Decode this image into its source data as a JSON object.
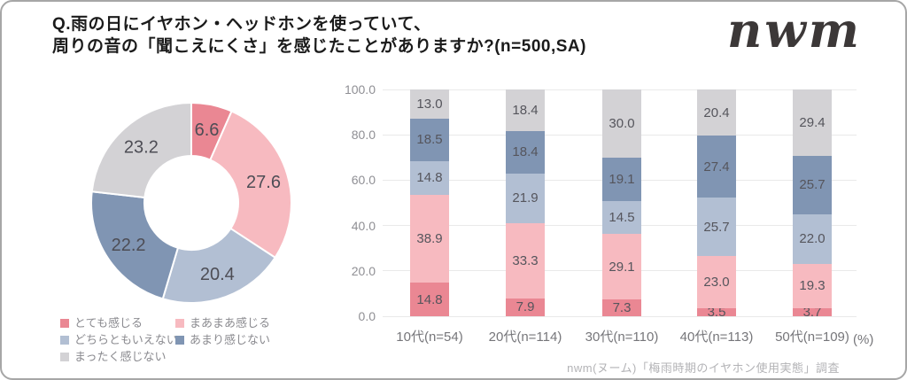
{
  "header": {
    "title_line1": "Q.雨の日にイヤホン・ヘッドホンを使っていて、",
    "title_line2": "周りの音の「聞こえにくさ」を感じたことがありますか?(n=500,SA)",
    "logo": "nwm"
  },
  "colors": {
    "palette": [
      "#EA8793",
      "#F7BAC0",
      "#B2BFD3",
      "#8095B3",
      "#D3D2D5"
    ],
    "gridline": "#e9e9e9",
    "value_label": "#55555c",
    "axis_label": "#8f8f94"
  },
  "legend": {
    "items": [
      {
        "label": "とても感じる",
        "color": "#EA8793"
      },
      {
        "label": "まあまあ感じる",
        "color": "#F7BAC0"
      },
      {
        "label": "どちらともいえない",
        "color": "#B2BFD3"
      },
      {
        "label": "あまり感じない",
        "color": "#8095B3"
      },
      {
        "label": "まったく感じない",
        "color": "#D3D2D5"
      }
    ]
  },
  "chart_data": [
    {
      "type": "pie",
      "donut": true,
      "start_angle": "top",
      "direction": "clockwise",
      "labels": [
        "とても感じる",
        "まあまあ感じる",
        "どちらともいえない",
        "あまり感じない",
        "まったく感じない"
      ],
      "values": [
        6.6,
        27.6,
        20.4,
        22.2,
        23.2
      ],
      "colors": [
        "#EA8793",
        "#F7BAC0",
        "#B2BFD3",
        "#8095B3",
        "#D3D2D5"
      ]
    },
    {
      "type": "bar",
      "stacked": true,
      "categories": [
        "10代(n=54)",
        "20代(n=114)",
        "30代(n=110)",
        "40代(n=113)",
        "50代(n=109)"
      ],
      "series": [
        {
          "name": "とても感じる",
          "values": [
            14.8,
            7.9,
            7.3,
            3.5,
            3.7
          ]
        },
        {
          "name": "まあまあ感じる",
          "values": [
            38.9,
            33.3,
            29.1,
            23.0,
            19.3
          ]
        },
        {
          "name": "どちらともいえない",
          "values": [
            14.8,
            21.9,
            14.5,
            25.7,
            22.0
          ]
        },
        {
          "name": "あまり感じない",
          "values": [
            18.5,
            18.4,
            19.1,
            27.4,
            25.7
          ]
        },
        {
          "name": "まったく感じない",
          "values": [
            13.0,
            18.4,
            30.0,
            20.4,
            29.4
          ]
        }
      ],
      "ylim": [
        0,
        100
      ],
      "ytick_values": [
        0,
        20,
        40,
        60,
        80,
        100
      ],
      "ytick_labels": [
        "0.0",
        "20.0",
        "40.0",
        "60.0",
        "80.0",
        "100.0"
      ],
      "unit_label": "(%)",
      "grid": true,
      "legend_position": "bottom-left-of-donut"
    }
  ],
  "footer": {
    "source": "nwm(ヌーム)「梅雨時期のイヤホン使用実態」調査"
  }
}
